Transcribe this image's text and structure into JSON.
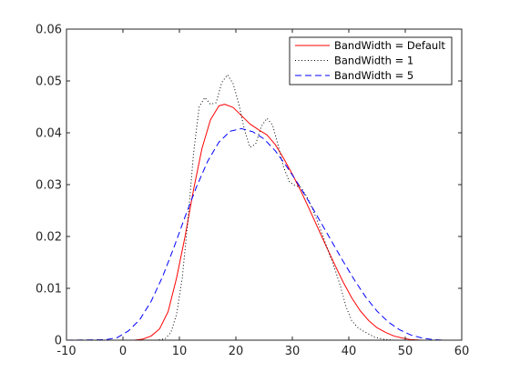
{
  "chart_data": {
    "type": "line",
    "title": "",
    "xlabel": "",
    "ylabel": "",
    "xlim": [
      -10,
      60
    ],
    "ylim": [
      0,
      0.06
    ],
    "x_ticks": [
      -10,
      0,
      10,
      20,
      30,
      40,
      50,
      60
    ],
    "y_ticks": [
      0,
      0.01,
      0.02,
      0.03,
      0.04,
      0.05,
      0.06
    ],
    "x_tick_labels": [
      "-10",
      "0",
      "10",
      "20",
      "30",
      "40",
      "50",
      "60"
    ],
    "y_tick_labels": [
      "0",
      "0.01",
      "0.02",
      "0.03",
      "0.04",
      "0.05",
      "0.06"
    ],
    "grid": false,
    "legend_position": "top-right",
    "series": [
      {
        "name": "BandWidth = Default",
        "color": "#ff0000",
        "line_style": "solid",
        "points": [
          [
            -10,
            0
          ],
          [
            2,
            0
          ],
          [
            3.5,
            0.0002
          ],
          [
            5,
            0.0008
          ],
          [
            6.5,
            0.0022
          ],
          [
            8,
            0.0055
          ],
          [
            9.5,
            0.012
          ],
          [
            11,
            0.02
          ],
          [
            12.5,
            0.029
          ],
          [
            14,
            0.037
          ],
          [
            15.5,
            0.0425
          ],
          [
            17,
            0.0452
          ],
          [
            18,
            0.0455
          ],
          [
            19.5,
            0.0449
          ],
          [
            21,
            0.0433
          ],
          [
            22.5,
            0.0417
          ],
          [
            24,
            0.0406
          ],
          [
            25.5,
            0.0396
          ],
          [
            27,
            0.0377
          ],
          [
            28.5,
            0.035
          ],
          [
            30,
            0.032
          ],
          [
            31.5,
            0.0288
          ],
          [
            33,
            0.0253
          ],
          [
            34.5,
            0.0217
          ],
          [
            36,
            0.0181
          ],
          [
            37.5,
            0.0146
          ],
          [
            39,
            0.0112
          ],
          [
            40.5,
            0.0082
          ],
          [
            42,
            0.0057
          ],
          [
            43.5,
            0.0038
          ],
          [
            45,
            0.0024
          ],
          [
            46.5,
            0.0015
          ],
          [
            48,
            0.0008
          ],
          [
            49.5,
            0.0004
          ],
          [
            51,
            0.0001
          ],
          [
            53,
            0
          ],
          [
            60,
            0
          ]
        ]
      },
      {
        "name": "BandWidth = 1",
        "color": "#000000",
        "line_style": "dotted",
        "points": [
          [
            -10,
            0
          ],
          [
            6,
            0
          ],
          [
            7.5,
            0.0003
          ],
          [
            8.5,
            0.0015
          ],
          [
            9.5,
            0.005
          ],
          [
            10.5,
            0.012
          ],
          [
            11.5,
            0.023
          ],
          [
            12.5,
            0.036
          ],
          [
            13.5,
            0.045
          ],
          [
            14.5,
            0.0468
          ],
          [
            15.5,
            0.0455
          ],
          [
            16.5,
            0.0458
          ],
          [
            17.5,
            0.0497
          ],
          [
            18.5,
            0.0512
          ],
          [
            19.5,
            0.0495
          ],
          [
            20.5,
            0.0457
          ],
          [
            21.5,
            0.0407
          ],
          [
            22.5,
            0.0372
          ],
          [
            23.5,
            0.0378
          ],
          [
            24.5,
            0.0412
          ],
          [
            25.5,
            0.0428
          ],
          [
            26.5,
            0.0415
          ],
          [
            27.5,
            0.0375
          ],
          [
            28.5,
            0.0332
          ],
          [
            29.5,
            0.0305
          ],
          [
            30.5,
            0.0298
          ],
          [
            31.5,
            0.0295
          ],
          [
            32.5,
            0.0278
          ],
          [
            33.5,
            0.0255
          ],
          [
            34.5,
            0.0228
          ],
          [
            35.5,
            0.0198
          ],
          [
            36.5,
            0.0168
          ],
          [
            37.5,
            0.0138
          ],
          [
            38.5,
            0.0105
          ],
          [
            39.5,
            0.0065
          ],
          [
            40.5,
            0.0038
          ],
          [
            41.5,
            0.0025
          ],
          [
            42.5,
            0.0018
          ],
          [
            43.5,
            0.0012
          ],
          [
            44.5,
            0.0006
          ],
          [
            46,
            0.0002
          ],
          [
            48,
            0
          ],
          [
            60,
            0
          ]
        ]
      },
      {
        "name": "BandWidth = 5",
        "color": "#0000ff",
        "line_style": "dashed",
        "points": [
          [
            -10,
            0
          ],
          [
            -3,
            0.0001
          ],
          [
            -1,
            0.0005
          ],
          [
            1,
            0.0018
          ],
          [
            3,
            0.004
          ],
          [
            5,
            0.0075
          ],
          [
            7,
            0.0122
          ],
          [
            9,
            0.0178
          ],
          [
            11,
            0.0238
          ],
          [
            13,
            0.0295
          ],
          [
            15,
            0.0345
          ],
          [
            17,
            0.0382
          ],
          [
            19,
            0.0403
          ],
          [
            21,
            0.0408
          ],
          [
            23,
            0.0402
          ],
          [
            25,
            0.0388
          ],
          [
            27,
            0.0365
          ],
          [
            29,
            0.0335
          ],
          [
            31,
            0.0302
          ],
          [
            33,
            0.0266
          ],
          [
            35,
            0.0228
          ],
          [
            37,
            0.019
          ],
          [
            39,
            0.0152
          ],
          [
            41,
            0.0116
          ],
          [
            43,
            0.0083
          ],
          [
            45,
            0.0056
          ],
          [
            47,
            0.0035
          ],
          [
            49,
            0.002
          ],
          [
            51,
            0.001
          ],
          [
            53,
            0.0004
          ],
          [
            55,
            0.0001
          ],
          [
            57,
            0
          ],
          [
            60,
            0
          ]
        ]
      }
    ]
  }
}
